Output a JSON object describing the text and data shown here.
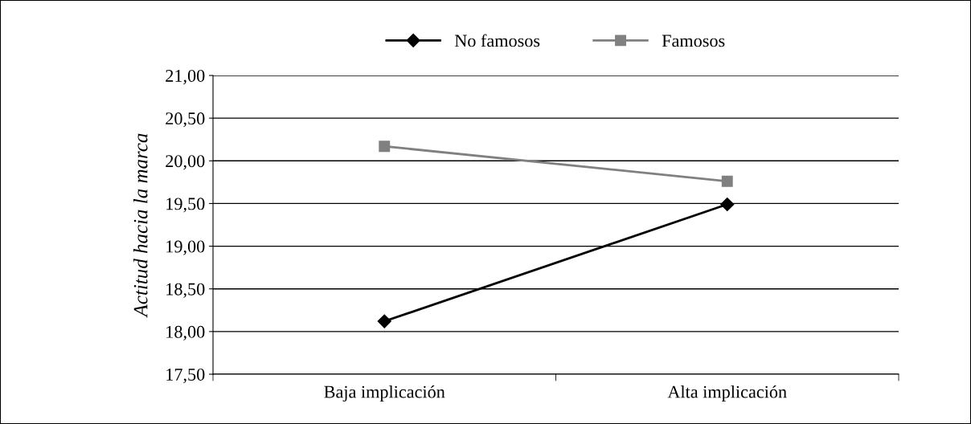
{
  "chart_data": {
    "type": "line",
    "ylabel": "Actitud hacia la marca",
    "categories": [
      "Baja implicación",
      "Alta implicación"
    ],
    "series": [
      {
        "name": "No famosos",
        "color": "#000000",
        "marker": "diamond",
        "values": [
          18.12,
          19.49
        ]
      },
      {
        "name": "Famosos",
        "color": "#808080",
        "marker": "square",
        "values": [
          20.17,
          19.76
        ]
      }
    ],
    "ylim": [
      17.5,
      21.0
    ],
    "yticks": [
      {
        "value": 17.5,
        "label": "17,50"
      },
      {
        "value": 18.0,
        "label": "18,00"
      },
      {
        "value": 18.5,
        "label": "18,50"
      },
      {
        "value": 19.0,
        "label": "19,00"
      },
      {
        "value": 19.5,
        "label": "19,50"
      },
      {
        "value": 20.0,
        "label": "20,00"
      },
      {
        "value": 20.5,
        "label": "20,50"
      },
      {
        "value": 21.0,
        "label": "21,00"
      }
    ],
    "grid": "y",
    "legend": "top",
    "line_style": "solid"
  }
}
